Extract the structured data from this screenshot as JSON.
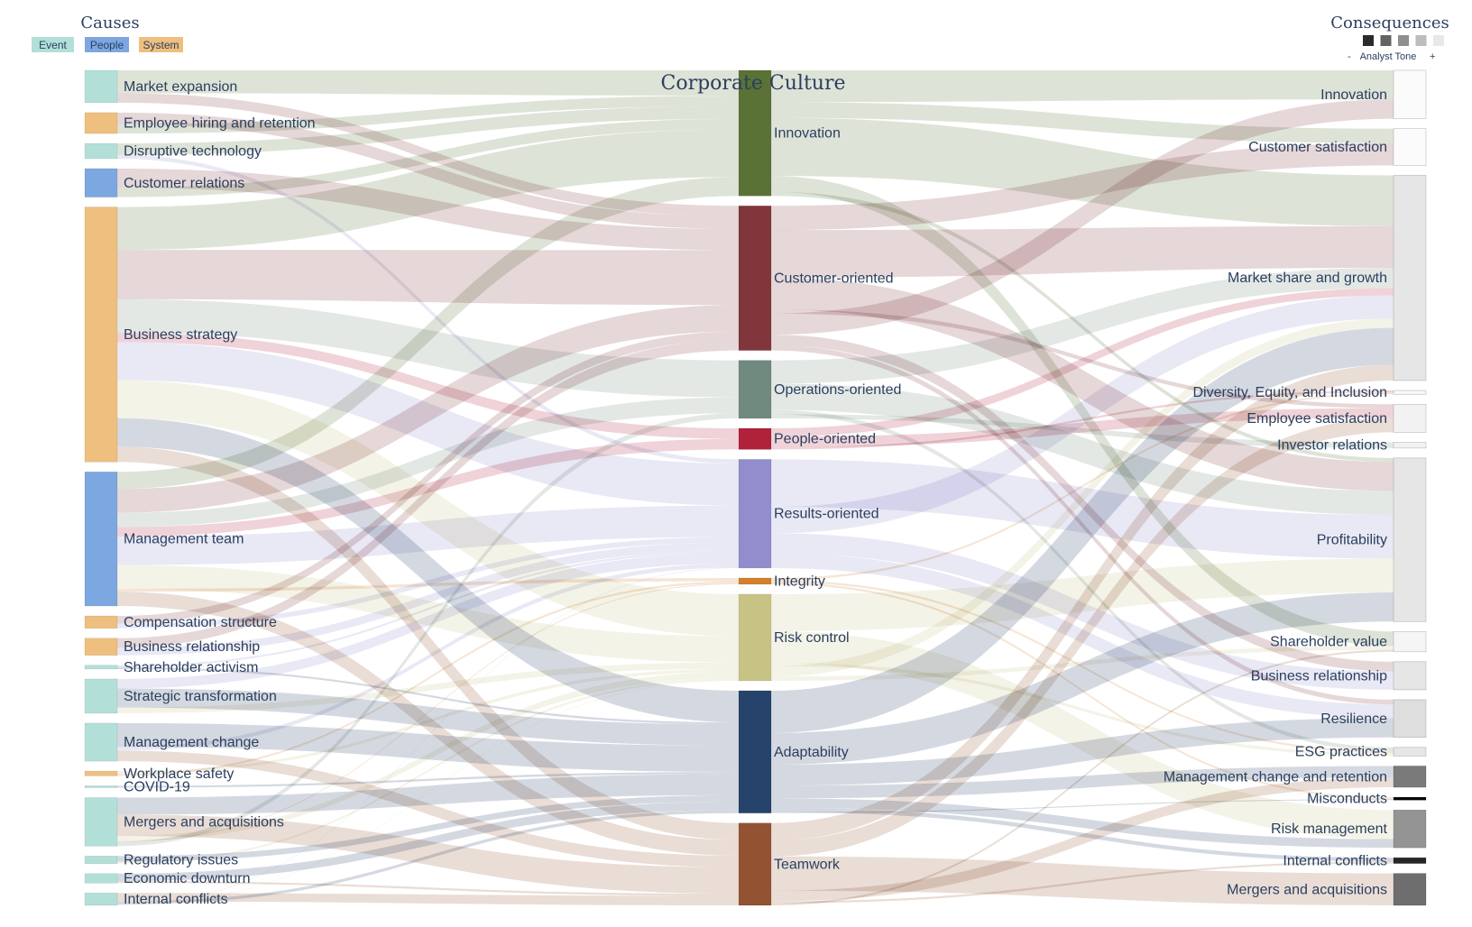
{
  "title": "Corporate Culture",
  "causes_header": "Causes",
  "consequences_header": "Consequences",
  "legend": [
    {
      "label": "Event",
      "color": "#b2e0d8"
    },
    {
      "label": "People",
      "color": "#7da7e0"
    },
    {
      "label": "System",
      "color": "#eebf7e"
    }
  ],
  "tone": {
    "label": "Analyst Tone",
    "minus": "-",
    "plus": "+",
    "colors": [
      "#2b2b2b",
      "#636363",
      "#8f8f8f",
      "#bdbdbd",
      "#e8e8e8"
    ]
  },
  "causes": [
    {
      "label": "Market expansion",
      "type": "Event",
      "value": 34
    },
    {
      "label": "Employee hiring and retention",
      "type": "System",
      "value": 22
    },
    {
      "label": "Disruptive technology",
      "type": "Event",
      "value": 16
    },
    {
      "label": "Customer relations",
      "type": "People",
      "value": 30
    },
    {
      "label": "Business strategy",
      "type": "System",
      "value": 268
    },
    {
      "label": "Management team",
      "type": "People",
      "value": 141
    },
    {
      "label": "Compensation structure",
      "type": "System",
      "value": 13
    },
    {
      "label": "Business relationship",
      "type": "System",
      "value": 18
    },
    {
      "label": "Shareholder activism",
      "type": "Event",
      "value": 4
    },
    {
      "label": "Strategic transformation",
      "type": "Event",
      "value": 36
    },
    {
      "label": "Management change",
      "type": "Event",
      "value": 40
    },
    {
      "label": "Workplace safety",
      "type": "System",
      "value": 5
    },
    {
      "label": "COVID-19",
      "type": "Event",
      "value": 2
    },
    {
      "label": "Mergers and acquisitions",
      "type": "Event",
      "value": 51
    },
    {
      "label": "Regulatory issues",
      "type": "Event",
      "value": 8
    },
    {
      "label": "Economic downturn",
      "type": "Event",
      "value": 10
    },
    {
      "label": "Internal conflicts",
      "type": "Event",
      "value": 13
    }
  ],
  "cultures": [
    {
      "label": "Innovation",
      "color": "#5a7236",
      "value": 119
    },
    {
      "label": "Customer-oriented",
      "color": "#80363b",
      "value": 137
    },
    {
      "label": "Operations-oriented",
      "color": "#718a7f",
      "value": 55
    },
    {
      "label": "People-oriented",
      "color": "#b0223a",
      "value": 20
    },
    {
      "label": "Results-oriented",
      "color": "#928dcc",
      "value": 103
    },
    {
      "label": "Integrity",
      "color": "#d37f2b",
      "value": 6
    },
    {
      "label": "Risk control",
      "color": "#c7c385",
      "value": 82
    },
    {
      "label": "Adaptability",
      "color": "#26436b",
      "value": 116
    },
    {
      "label": "Teamwork",
      "color": "#935332",
      "value": 78
    }
  ],
  "consequences": [
    {
      "label": "Innovation",
      "tone": "#fbfbfb",
      "value": 50
    },
    {
      "label": "Customer satisfaction",
      "tone": "#fbfbfb",
      "value": 38
    },
    {
      "label": "Market share and growth",
      "tone": "#e6e6e6",
      "value": 212
    },
    {
      "label": "Diversity, Equity, and Inclusion",
      "tone": "#f7f7f7",
      "value": 4
    },
    {
      "label": "Employee satisfaction",
      "tone": "#f2f2f2",
      "value": 29
    },
    {
      "label": "Investor relations",
      "tone": "#f2f2f2",
      "value": 6
    },
    {
      "label": "Profitability",
      "tone": "#e6e6e6",
      "value": 169
    },
    {
      "label": "Shareholder value",
      "tone": "#f5f5f5",
      "value": 21
    },
    {
      "label": "Business relationship",
      "tone": "#e6e6e6",
      "value": 29
    },
    {
      "label": "Resilience",
      "tone": "#dedede",
      "value": 39
    },
    {
      "label": "ESG practices",
      "tone": "#e6e6e6",
      "value": 9
    },
    {
      "label": "Management change and retention",
      "tone": "#7a7a7a",
      "value": 22
    },
    {
      "label": "Misconducts",
      "tone": "#000000",
      "value": 3
    },
    {
      "label": "Risk management",
      "tone": "#949494",
      "value": 39
    },
    {
      "label": "Internal conflicts",
      "tone": "#262626",
      "value": 6
    },
    {
      "label": "Mergers and acquisitions",
      "tone": "#6e6e6e",
      "value": 33
    }
  ],
  "links_in": [
    {
      "s": 0,
      "t": 0,
      "v": 24
    },
    {
      "s": 0,
      "t": 1,
      "v": 10
    },
    {
      "s": 1,
      "t": 1,
      "v": 12
    },
    {
      "s": 1,
      "t": 0,
      "v": 10
    },
    {
      "s": 2,
      "t": 0,
      "v": 12
    },
    {
      "s": 2,
      "t": 4,
      "v": 4
    },
    {
      "s": 3,
      "t": 1,
      "v": 20
    },
    {
      "s": 3,
      "t": 0,
      "v": 10
    },
    {
      "s": 4,
      "t": 0,
      "v": 45
    },
    {
      "s": 4,
      "t": 1,
      "v": 52
    },
    {
      "s": 4,
      "t": 2,
      "v": 35
    },
    {
      "s": 4,
      "t": 3,
      "v": 10
    },
    {
      "s": 4,
      "t": 4,
      "v": 40
    },
    {
      "s": 4,
      "t": 6,
      "v": 40
    },
    {
      "s": 4,
      "t": 7,
      "v": 30
    },
    {
      "s": 4,
      "t": 8,
      "v": 16
    },
    {
      "s": 5,
      "t": 0,
      "v": 18
    },
    {
      "s": 5,
      "t": 1,
      "v": 25
    },
    {
      "s": 5,
      "t": 2,
      "v": 15
    },
    {
      "s": 5,
      "t": 3,
      "v": 10
    },
    {
      "s": 5,
      "t": 4,
      "v": 30
    },
    {
      "s": 5,
      "t": 6,
      "v": 25
    },
    {
      "s": 5,
      "t": 5,
      "v": 3
    },
    {
      "s": 5,
      "t": 8,
      "v": 15
    },
    {
      "s": 6,
      "t": 1,
      "v": 8
    },
    {
      "s": 6,
      "t": 4,
      "v": 5
    },
    {
      "s": 7,
      "t": 1,
      "v": 10
    },
    {
      "s": 7,
      "t": 4,
      "v": 8
    },
    {
      "s": 8,
      "t": 4,
      "v": 2
    },
    {
      "s": 8,
      "t": 7,
      "v": 2
    },
    {
      "s": 9,
      "t": 4,
      "v": 10
    },
    {
      "s": 9,
      "t": 7,
      "v": 20
    },
    {
      "s": 9,
      "t": 6,
      "v": 6
    },
    {
      "s": 10,
      "t": 7,
      "v": 25
    },
    {
      "s": 10,
      "t": 4,
      "v": 4
    },
    {
      "s": 10,
      "t": 8,
      "v": 11
    },
    {
      "s": 11,
      "t": 6,
      "v": 3
    },
    {
      "s": 11,
      "t": 5,
      "v": 2
    },
    {
      "s": 12,
      "t": 7,
      "v": 2
    },
    {
      "s": 13,
      "t": 7,
      "v": 20
    },
    {
      "s": 13,
      "t": 8,
      "v": 25
    },
    {
      "s": 13,
      "t": 6,
      "v": 6
    },
    {
      "s": 13,
      "t": 5,
      "v": 1
    },
    {
      "s": 13,
      "t": 2,
      "v": 5
    },
    {
      "s": 14,
      "t": 7,
      "v": 6
    },
    {
      "s": 14,
      "t": 6,
      "v": 2
    },
    {
      "s": 15,
      "t": 7,
      "v": 8
    },
    {
      "s": 15,
      "t": 8,
      "v": 2
    },
    {
      "s": 16,
      "t": 8,
      "v": 9
    },
    {
      "s": 16,
      "t": 7,
      "v": 3
    },
    {
      "s": 16,
      "t": 4,
      "v": 0.5
    },
    {
      "s": 16,
      "t": 6,
      "v": 0.5
    }
  ],
  "links_out": [
    {
      "s": 0,
      "t": 0,
      "v": 30
    },
    {
      "s": 0,
      "t": 1,
      "v": 15
    },
    {
      "s": 0,
      "t": 2,
      "v": 55
    },
    {
      "s": 0,
      "t": 7,
      "v": 15
    },
    {
      "s": 0,
      "t": 6,
      "v": 4
    },
    {
      "s": 1,
      "t": 1,
      "v": 23
    },
    {
      "s": 1,
      "t": 2,
      "v": 45
    },
    {
      "s": 1,
      "t": 6,
      "v": 30
    },
    {
      "s": 1,
      "t": 4,
      "v": 4
    },
    {
      "s": 1,
      "t": 0,
      "v": 20
    },
    {
      "s": 1,
      "t": 8,
      "v": 10
    },
    {
      "s": 1,
      "t": 9,
      "v": 5
    },
    {
      "s": 2,
      "t": 2,
      "v": 22
    },
    {
      "s": 2,
      "t": 6,
      "v": 25
    },
    {
      "s": 2,
      "t": 10,
      "v": 4
    },
    {
      "s": 2,
      "t": 5,
      "v": 4
    },
    {
      "s": 3,
      "t": 2,
      "v": 8
    },
    {
      "s": 3,
      "t": 4,
      "v": 10
    },
    {
      "s": 3,
      "t": 3,
      "v": 2
    },
    {
      "s": 4,
      "t": 6,
      "v": 45
    },
    {
      "s": 4,
      "t": 2,
      "v": 25
    },
    {
      "s": 4,
      "t": 8,
      "v": 19
    },
    {
      "s": 4,
      "t": 9,
      "v": 14
    },
    {
      "s": 5,
      "t": 3,
      "v": 2
    },
    {
      "s": 5,
      "t": 10,
      "v": 2
    },
    {
      "s": 5,
      "t": 12,
      "v": 2
    },
    {
      "s": 6,
      "t": 6,
      "v": 35
    },
    {
      "s": 6,
      "t": 13,
      "v": 30
    },
    {
      "s": 6,
      "t": 10,
      "v": 3
    },
    {
      "s": 6,
      "t": 2,
      "v": 10
    },
    {
      "s": 6,
      "t": 7,
      "v": 4
    },
    {
      "s": 7,
      "t": 2,
      "v": 40
    },
    {
      "s": 7,
      "t": 6,
      "v": 30
    },
    {
      "s": 7,
      "t": 9,
      "v": 20
    },
    {
      "s": 7,
      "t": 11,
      "v": 12
    },
    {
      "s": 7,
      "t": 13,
      "v": 9
    },
    {
      "s": 7,
      "t": 14,
      "v": 4
    },
    {
      "s": 7,
      "t": 12,
      "v": 1
    },
    {
      "s": 8,
      "t": 2,
      "v": 17
    },
    {
      "s": 8,
      "t": 4,
      "v": 15
    },
    {
      "s": 8,
      "t": 15,
      "v": 33
    },
    {
      "s": 8,
      "t": 11,
      "v": 10
    },
    {
      "s": 8,
      "t": 14,
      "v": 2
    },
    {
      "s": 8,
      "t": 7,
      "v": 2
    },
    {
      "s": 8,
      "t": 5,
      "v": 0
    }
  ]
}
